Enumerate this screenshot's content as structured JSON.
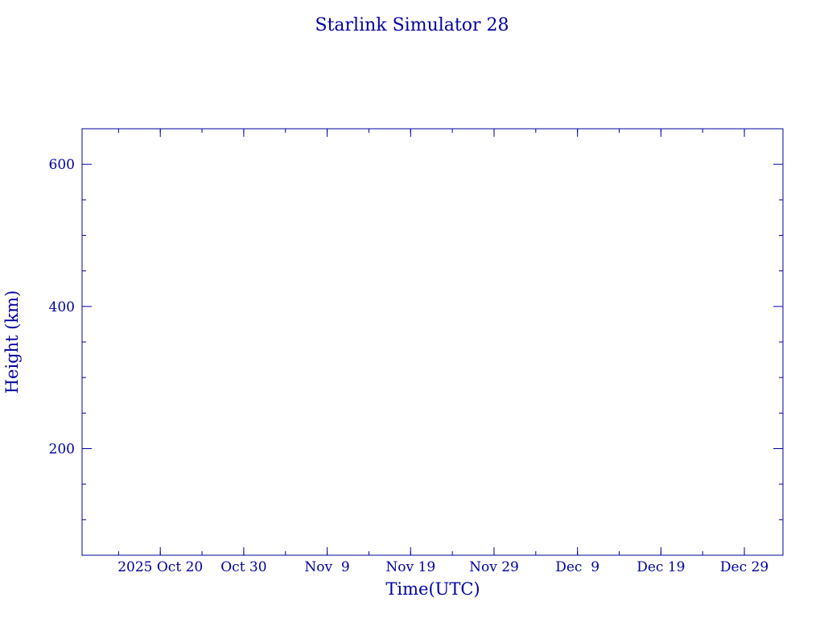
{
  "chart_data": {
    "type": "line",
    "title": "Starlink Simulator 28",
    "xlabel": "Time(UTC)",
    "ylabel": "Height (km)",
    "xlim": [
      "2025-10-10T15:00:00Z",
      "2026-01-02T15:00:00Z"
    ],
    "ylim": [
      50,
      650
    ],
    "x_ticks": [
      {
        "date": "2025-10-20",
        "label": "2025 Oct 20"
      },
      {
        "date": "2025-10-30",
        "label": "Oct 30"
      },
      {
        "date": "2025-11-09",
        "label": "Nov  9"
      },
      {
        "date": "2025-11-19",
        "label": "Nov 19"
      },
      {
        "date": "2025-11-29",
        "label": "Nov 29"
      },
      {
        "date": "2025-12-09",
        "label": "Dec  9"
      },
      {
        "date": "2025-12-19",
        "label": "Dec 19"
      },
      {
        "date": "2025-12-29",
        "label": "Dec 29"
      }
    ],
    "x_minor_days": 5,
    "y_ticks": [
      200,
      400,
      600
    ],
    "y_minor_step": 50,
    "series": [],
    "grid": false,
    "color": "#0000a0"
  }
}
